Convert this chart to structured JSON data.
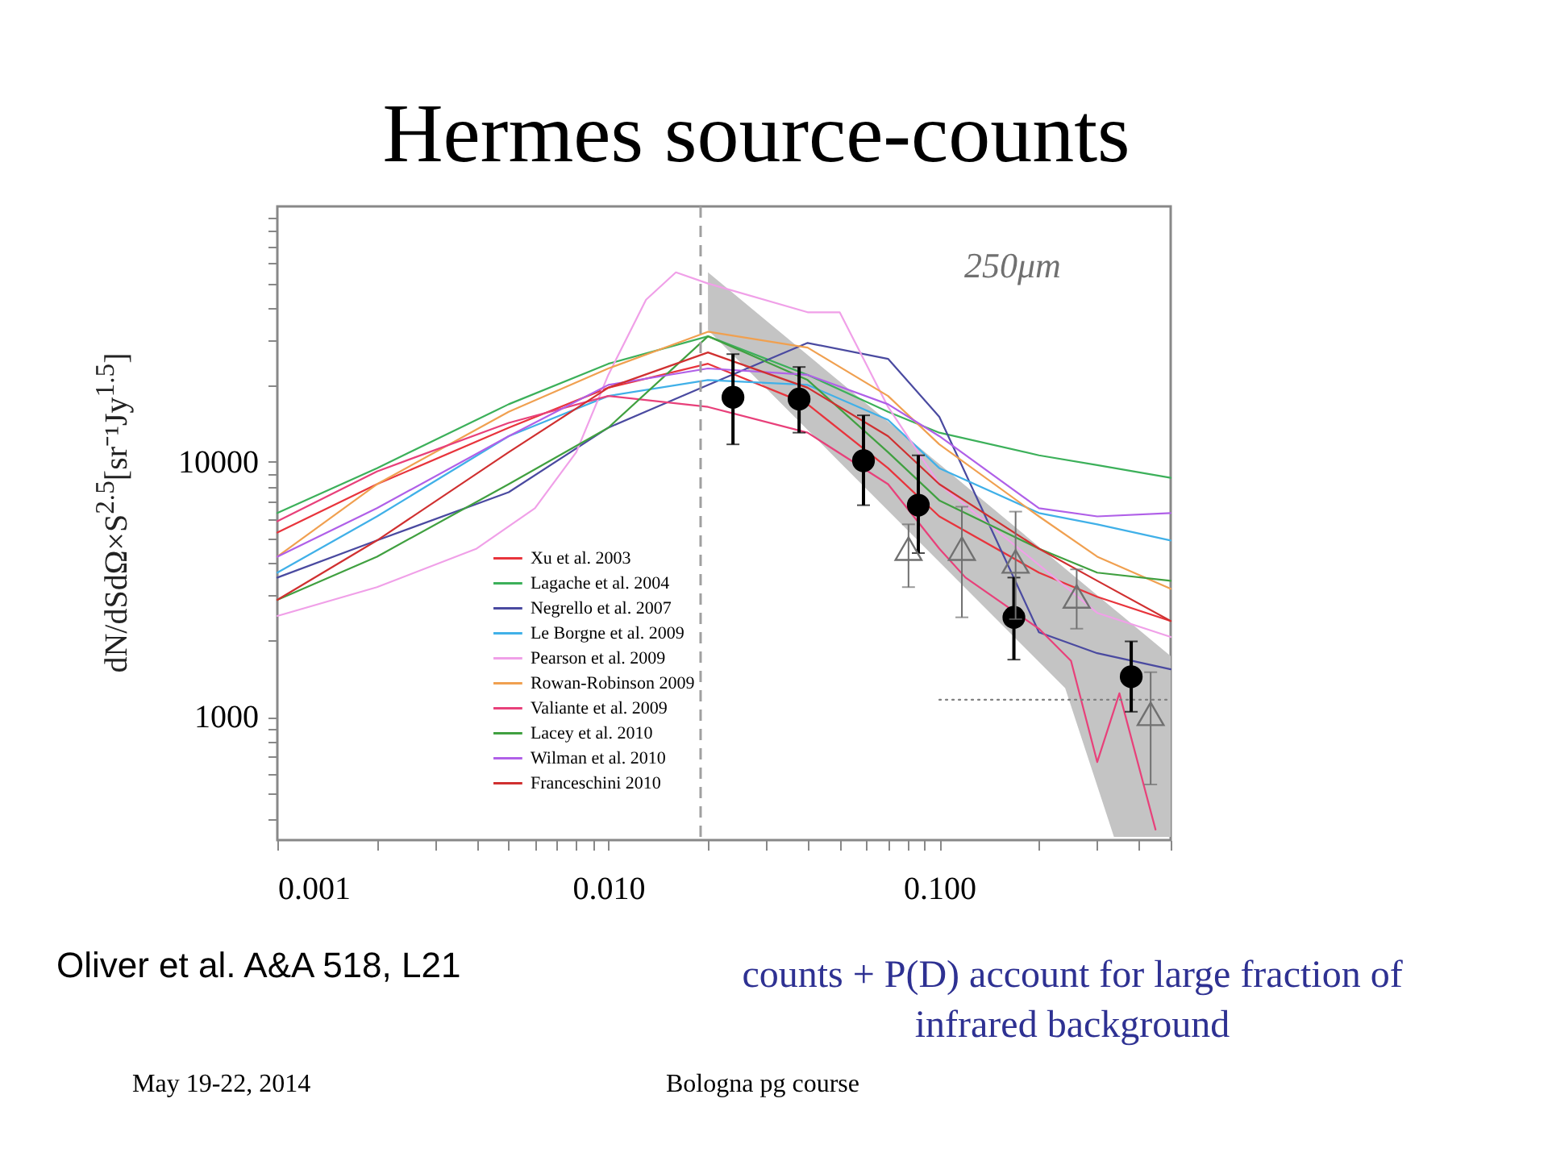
{
  "chart_data": {
    "type": "line",
    "title": "Hermes source-counts",
    "ylabel": "dN/dSdΩ×S$^{2.5}$[sr⁻¹Jy$^{1.5}$]",
    "annotations": [
      "250μm",
      "Oliver et al. A&A 518, L21",
      "counts + P(D) account for large fraction of infrared background",
      "May 19-22, 2014",
      "Bologna pg course"
    ],
    "log": "xy",
    "xlim": [
      0.001,
      0.5
    ],
    "ylim": [
      330,
      100000
    ],
    "xticks": [
      {
        "value": 0.001,
        "label": "0.001"
      },
      {
        "value": 0.002,
        "label": null
      },
      {
        "value": 0.003,
        "label": null
      },
      {
        "value": 0.004,
        "label": null
      },
      {
        "value": 0.005,
        "label": null
      },
      {
        "value": 0.006,
        "label": null
      },
      {
        "value": 0.007,
        "label": null
      },
      {
        "value": 0.008,
        "label": null
      },
      {
        "value": 0.009,
        "label": null
      },
      {
        "value": 0.01,
        "label": "0.010"
      },
      {
        "value": 0.02,
        "label": null
      },
      {
        "value": 0.03,
        "label": null
      },
      {
        "value": 0.04,
        "label": null
      },
      {
        "value": 0.05,
        "label": null
      },
      {
        "value": 0.06,
        "label": null
      },
      {
        "value": 0.07,
        "label": null
      },
      {
        "value": 0.08,
        "label": null
      },
      {
        "value": 0.09,
        "label": null
      },
      {
        "value": 0.1,
        "label": "0.100"
      },
      {
        "value": 0.2,
        "label": null
      },
      {
        "value": 0.3,
        "label": null
      },
      {
        "value": 0.4,
        "label": null
      },
      {
        "value": 0.5,
        "label": null
      }
    ],
    "yticks": [
      {
        "value": 400,
        "label": null
      },
      {
        "value": 500,
        "label": null
      },
      {
        "value": 600,
        "label": null
      },
      {
        "value": 700,
        "label": null
      },
      {
        "value": 800,
        "label": null
      },
      {
        "value": 900,
        "label": null
      },
      1000,
      {
        "value": 2000,
        "label": null
      },
      {
        "value": 3000,
        "label": null
      },
      {
        "value": 4000,
        "label": null
      },
      {
        "value": 5000,
        "label": null
      },
      {
        "value": 6000,
        "label": null
      },
      {
        "value": 7000,
        "label": null
      },
      {
        "value": 8000,
        "label": null
      },
      {
        "value": 9000,
        "label": null
      },
      10000,
      {
        "value": 20000,
        "label": null
      },
      {
        "value": 30000,
        "label": null
      },
      {
        "value": 40000,
        "label": null
      },
      {
        "value": 50000,
        "label": null
      },
      {
        "value": 60000,
        "label": null
      },
      {
        "value": 70000,
        "label": null
      },
      {
        "value": 80000,
        "label": null
      },
      {
        "value": 90000,
        "label": null
      }
    ],
    "legend": "bottom left",
    "ref_lines": [
      {
        "axis": "x",
        "value": 0.019,
        "color": "#a0a0a0",
        "line_style": "dashed"
      }
    ],
    "x": [
      0.001,
      0.002,
      0.005,
      0.01,
      0.02,
      0.04,
      0.07,
      0.1,
      0.2,
      0.3,
      0.5
    ],
    "series": [
      {
        "type": "area",
        "color": "#c4c4c4",
        "x": [
          0.02,
          0.05,
          0.1,
          0.24,
          0.337,
          0.5
        ],
        "values": [
          null,
          null,
          null,
          null,
          null,
          null
        ],
        "upper": [
          55200,
          20600,
          9800,
          3820,
          2650,
          1735
        ],
        "lower": [
          32800,
          9970,
          4050,
          1300,
          340,
          340
        ]
      },
      {
        "name": "Xu et al. 2003",
        "color": "#e8343c",
        "marker": "none",
        "values": [
          5280,
          8170,
          13600,
          19500,
          24200,
          16800,
          9440,
          6110,
          3680,
          2960,
          2380
        ]
      },
      {
        "name": "Lagache et al. 2004",
        "color": "#3cb05a",
        "marker": "none",
        "values": [
          6300,
          9440,
          16800,
          24200,
          31000,
          21900,
          15700,
          13000,
          10600,
          9710,
          8650
        ]
      },
      {
        "name": "Negrello et al. 2007",
        "color": "#4a4aa0",
        "marker": "none",
        "values": [
          3520,
          4920,
          7600,
          13600,
          20000,
          29200,
          25300,
          15000,
          2150,
          1780,
          1540
        ]
      },
      {
        "name": "Le Borgne et al. 2009",
        "color": "#40b0e8",
        "marker": "none",
        "values": [
          3680,
          6110,
          12600,
          18100,
          20900,
          20000,
          14600,
          9440,
          6300,
          5690,
          4920
        ]
      },
      {
        "name": "Pearson et al. 2009",
        "color": "#f0a0e8",
        "marker": "none",
        "x": [
          0.001,
          0.002,
          0.004,
          0.006,
          0.008,
          0.01,
          0.013,
          0.016,
          0.02,
          0.04,
          0.05,
          0.07,
          0.1,
          0.2,
          0.3,
          0.5
        ],
        "values": [
          2490,
          3230,
          4570,
          6580,
          10900,
          21900,
          43100,
          55200,
          49900,
          38500,
          38500,
          16400,
          8170,
          3950,
          2560,
          2060
        ]
      },
      {
        "name": "Rowan-Robinson 2009",
        "color": "#f0a050",
        "marker": "none",
        "values": [
          4250,
          8170,
          15700,
          23200,
          32300,
          28000,
          18100,
          11700,
          6110,
          4250,
          3180
        ]
      },
      {
        "name": "Valiante et al. 2009",
        "color": "#e8407a",
        "marker": "none",
        "x": [
          0.001,
          0.002,
          0.005,
          0.01,
          0.02,
          0.04,
          0.07,
          0.1,
          0.12,
          0.2,
          0.25,
          0.3,
          0.35,
          0.45
        ],
        "values": [
          5850,
          9170,
          14200,
          18100,
          16400,
          13000,
          8170,
          4570,
          3520,
          2220,
          1660,
          667,
          1240,
          363
        ]
      },
      {
        "name": "Lacey et al. 2010",
        "color": "#40a040",
        "marker": "none",
        "values": [
          2880,
          4250,
          8170,
          13600,
          31000,
          20900,
          10900,
          7060,
          4570,
          3680,
          3420
        ]
      },
      {
        "name": "Wilman et al. 2010",
        "color": "#b060e8",
        "marker": "none",
        "values": [
          4250,
          6580,
          12600,
          20000,
          23200,
          21900,
          16800,
          12600,
          6580,
          6110,
          6300
        ]
      },
      {
        "name": "Franceschini 2010",
        "color": "#d03030",
        "marker": "none",
        "values": [
          2880,
          4920,
          10900,
          19500,
          26800,
          19500,
          12600,
          8170,
          4570,
          3420,
          2380
        ]
      },
      {
        "color": "#808080",
        "marker": "none",
        "line_style": "dotted",
        "x": [
          0.1,
          0.5
        ],
        "values": [
          1170,
          1170
        ]
      },
      {
        "type": "scatter",
        "color": "#000000",
        "marker": "circle",
        "x": [
          0.0238,
          0.0377,
          0.059,
          0.0864,
          0.168,
          0.38
        ],
        "values": [
          17900,
          17600,
          10100,
          6760,
          2460,
          1440
        ],
        "errors": [
          [
            11700,
            26400
          ],
          [
            13000,
            23500
          ],
          [
            6760,
            15200
          ],
          [
            4390,
            10600
          ],
          [
            1680,
            3520
          ],
          [
            1050,
            1980
          ]
        ]
      },
      {
        "type": "scatter",
        "color": "#707070",
        "marker": "triangle",
        "x": [
          0.0807,
          0.117,
          0.17,
          0.26,
          0.435
        ],
        "values": [
          4570,
          4570,
          4070,
          2970,
          1030
        ],
        "errors": [
          [
            3230,
            5690
          ],
          [
            2460,
            6670
          ],
          [
            2420,
            6380
          ],
          [
            2220,
            3790
          ],
          [
            545,
            1500
          ]
        ]
      }
    ]
  }
}
